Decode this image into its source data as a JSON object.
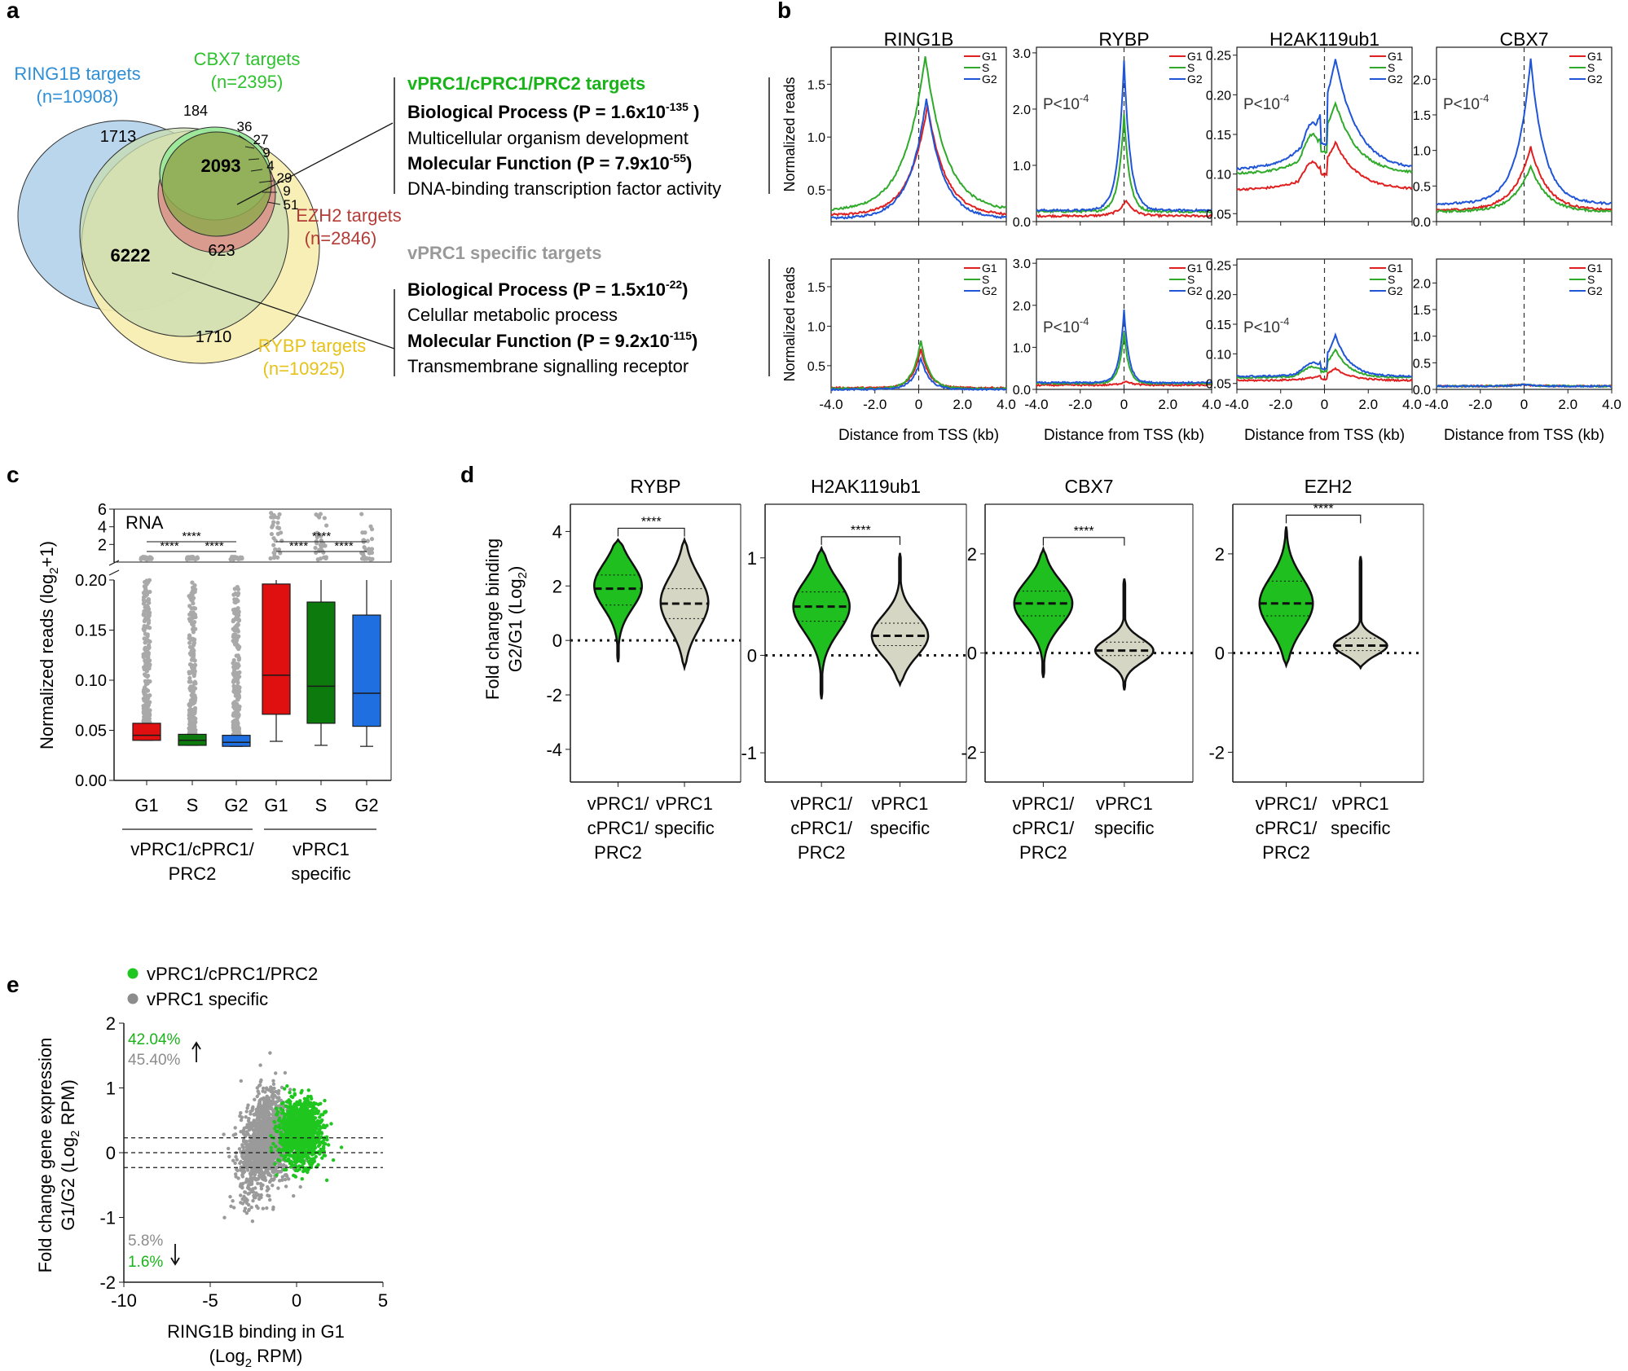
{
  "panel_labels": [
    "a",
    "b",
    "c",
    "d",
    "e"
  ],
  "colors": {
    "ring1b": "#3f8fd2",
    "cbx7": "#3cc43c",
    "ezh2": "#b8413c",
    "rybp": "#e8c620",
    "g1": "#e02020",
    "s": "#2faa2a",
    "g2": "#1f55d6",
    "vprc_green": "#19b319",
    "specific_gray": "#8c8c8c",
    "violin_green": "#1fbf1f",
    "violin_gray": "#d6d6c4"
  },
  "venn": {
    "sets": [
      {
        "name": "RING1B targets",
        "n": "(n=10908)",
        "color": "#2f8fd6"
      },
      {
        "name": "CBX7 targets",
        "n": "(n=2395)",
        "color": "#2fc22f"
      },
      {
        "name": "EZH2 targets",
        "n": "(n=2846)",
        "color": "#b43c36"
      },
      {
        "name": "RYBP targets",
        "n": "(n=10925)",
        "color": "#e6c21a"
      }
    ],
    "counts": {
      "c1713": "1713",
      "c184": "184",
      "c36": "36",
      "c27": "27",
      "c9a": "9",
      "c4": "4",
      "c29": "29",
      "c9b": "9",
      "c51": "51",
      "c2093": "2093",
      "c6222": "6222",
      "c623": "623",
      "c1710": "1710"
    }
  },
  "go": [
    {
      "header": "vPRC1/cPRC1/PRC2 targets",
      "bp_label": "Biological Process (P = 1.6x10",
      "bp_exp": "-135",
      "bp_close": " )",
      "bp_term": "Multicellular organism development",
      "mf_label": "Molecular Function (P = 7.9x10",
      "mf_exp": "-55",
      "mf_close": ")",
      "mf_term": "DNA-binding transcription factor activity"
    },
    {
      "header": "vPRC1 specific targets",
      "bp_label": "Biological Process (P = 1.5x10",
      "bp_exp": "-22",
      "bp_close": ")",
      "bp_term": "Celullar metabolic process",
      "mf_label": "Molecular Function (P = 9.2x10",
      "mf_exp": "-115",
      "mf_close": ")",
      "mf_term": "Transmembrane signalling receptor"
    }
  ],
  "chart_data": [
    {
      "panel": "b",
      "type": "line",
      "titles": [
        "RING1B",
        "RYBP",
        "H2AK119ub1",
        "CBX7"
      ],
      "ylabel": "Normalized reads",
      "xlabel": "Distance from TSS (kb)",
      "xlim": [
        -4.0,
        4.0
      ],
      "xticks": [
        "-4.0",
        "-2.0",
        "0",
        "2.0",
        "4.0"
      ],
      "legend": [
        "G1",
        "S",
        "G2"
      ],
      "pvalue_base": "P<10",
      "pvalue_exp": "-4",
      "rows": [
        {
          "group": "vPRC1/cPRC1/PRC2 targets",
          "panels": [
            {
              "ylim": [
                0.2,
                1.85
              ],
              "yticks": [
                "0.5",
                "1.0",
                "1.5"
              ],
              "ytick_values": [
                0.5,
                1.0,
                1.5
              ],
              "pvalue": false,
              "series": [
                {
                  "name": "G1",
                  "base": 0.26,
                  "peak": 1.3,
                  "peak_x": 0.4,
                  "width": 1.3,
                  "spike": 0
                },
                {
                  "name": "S",
                  "base": 0.3,
                  "peak": 1.77,
                  "peak_x": 0.3,
                  "width": 1.5,
                  "spike": 0
                },
                {
                  "name": "G2",
                  "base": 0.23,
                  "peak": 1.37,
                  "peak_x": 0.35,
                  "width": 1.2,
                  "spike": 0
                }
              ]
            },
            {
              "ylim": [
                0.0,
                3.1
              ],
              "yticks": [
                "0.0",
                "1.0",
                "2.0",
                "3.0"
              ],
              "ytick_values": [
                0.0,
                1.0,
                2.0,
                3.0
              ],
              "pvalue": true,
              "series": [
                {
                  "name": "G1",
                  "base": 0.1,
                  "peak": 0.38,
                  "peak_x": 0.1,
                  "width": 0.6,
                  "spike": 0
                },
                {
                  "name": "S",
                  "base": 0.18,
                  "peak": 1.92,
                  "peak_x": 0.0,
                  "width": 0.4,
                  "spike": 0
                },
                {
                  "name": "G2",
                  "base": 0.2,
                  "peak": 2.88,
                  "peak_x": 0.0,
                  "width": 0.45,
                  "spike": 0
                }
              ]
            },
            {
              "ylim": [
                0.04,
                0.26
              ],
              "yticks": [
                "0.05",
                "0.10",
                "0.15",
                "0.20",
                "0.25"
              ],
              "ytick_values": [
                0.05,
                0.1,
                0.15,
                0.2,
                0.25
              ],
              "pvalue": true,
              "series": [
                {
                  "name": "G1",
                  "base": 0.08,
                  "peak": 0.14,
                  "peak_x": 0.5,
                  "width": 1.6,
                  "spike": 0.115
                },
                {
                  "name": "S",
                  "base": 0.1,
                  "peak": 0.19,
                  "peak_x": 0.5,
                  "width": 1.6,
                  "spike": 0.15
                },
                {
                  "name": "G2",
                  "base": 0.105,
                  "peak": 0.245,
                  "peak_x": 0.5,
                  "width": 1.6,
                  "spike": 0.165
                }
              ]
            },
            {
              "ylim": [
                0.0,
                2.45
              ],
              "yticks": [
                "0.0",
                "0.5",
                "1.0",
                "1.5",
                "2.0"
              ],
              "ytick_values": [
                0.0,
                0.5,
                1.0,
                1.5,
                2.0
              ],
              "pvalue": true,
              "series": [
                {
                  "name": "G1",
                  "base": 0.16,
                  "peak": 1.05,
                  "peak_x": 0.3,
                  "width": 1.2,
                  "spike": 0
                },
                {
                  "name": "S",
                  "base": 0.14,
                  "peak": 0.78,
                  "peak_x": 0.3,
                  "width": 1.2,
                  "spike": 0
                },
                {
                  "name": "G2",
                  "base": 0.25,
                  "peak": 2.28,
                  "peak_x": 0.3,
                  "width": 1.0,
                  "spike": 0
                }
              ]
            }
          ]
        },
        {
          "group": "vPRC1 specific targets",
          "panels": [
            {
              "ylim": [
                0.2,
                1.85
              ],
              "yticks": [
                "0.5",
                "1.0",
                "1.5"
              ],
              "ytick_values": [
                0.5,
                1.0,
                1.5
              ],
              "pvalue": false,
              "series": [
                {
                  "name": "G1",
                  "base": 0.22,
                  "peak": 0.72,
                  "peak_x": 0.1,
                  "width": 0.6,
                  "spike": 0
                },
                {
                  "name": "S",
                  "base": 0.21,
                  "peak": 0.82,
                  "peak_x": 0.1,
                  "width": 0.6,
                  "spike": 0
                },
                {
                  "name": "G2",
                  "base": 0.2,
                  "peak": 0.6,
                  "peak_x": 0.1,
                  "width": 0.6,
                  "spike": 0
                }
              ]
            },
            {
              "ylim": [
                0.0,
                3.1
              ],
              "yticks": [
                "0.0",
                "1.0",
                "2.0",
                "3.0"
              ],
              "ytick_values": [
                0.0,
                1.0,
                2.0,
                3.0
              ],
              "pvalue": true,
              "series": [
                {
                  "name": "G1",
                  "base": 0.1,
                  "peak": 0.2,
                  "peak_x": 0.1,
                  "width": 0.5,
                  "spike": 0
                },
                {
                  "name": "S",
                  "base": 0.14,
                  "peak": 1.37,
                  "peak_x": 0.0,
                  "width": 0.35,
                  "spike": 0
                },
                {
                  "name": "G2",
                  "base": 0.16,
                  "peak": 1.9,
                  "peak_x": 0.0,
                  "width": 0.35,
                  "spike": 0
                }
              ]
            },
            {
              "ylim": [
                0.04,
                0.26
              ],
              "yticks": [
                "0.05",
                "0.10",
                "0.15",
                "0.20",
                "0.25"
              ],
              "ytick_values": [
                0.05,
                0.1,
                0.15,
                0.2,
                0.25
              ],
              "pvalue": true,
              "series": [
                {
                  "name": "G1",
                  "base": 0.055,
                  "peak": 0.075,
                  "peak_x": 0.5,
                  "width": 1.2,
                  "spike": 0.058
                },
                {
                  "name": "S",
                  "base": 0.06,
                  "peak": 0.108,
                  "peak_x": 0.5,
                  "width": 1.0,
                  "spike": 0.078
                },
                {
                  "name": "G2",
                  "base": 0.062,
                  "peak": 0.132,
                  "peak_x": 0.5,
                  "width": 1.0,
                  "spike": 0.085
                }
              ]
            },
            {
              "ylim": [
                0.0,
                2.45
              ],
              "yticks": [
                "0.0",
                "0.5",
                "1.0",
                "1.5",
                "2.0"
              ],
              "ytick_values": [
                0.0,
                0.5,
                1.0,
                1.5,
                2.0
              ],
              "pvalue": false,
              "series": [
                {
                  "name": "G1",
                  "base": 0.06,
                  "peak": 0.09,
                  "peak_x": 0.0,
                  "width": 1.0,
                  "spike": 0
                },
                {
                  "name": "S",
                  "base": 0.06,
                  "peak": 0.09,
                  "peak_x": 0.0,
                  "width": 1.0,
                  "spike": 0
                },
                {
                  "name": "G2",
                  "base": 0.06,
                  "peak": 0.09,
                  "peak_x": 0.0,
                  "width": 1.0,
                  "spike": 0
                }
              ]
            }
          ]
        }
      ]
    },
    {
      "panel": "c",
      "type": "box",
      "corner_label": "RNA",
      "ylabel": "Normalized reads (log",
      "ylabel_sub": "2",
      "ylabel_end": "+1)",
      "yticks_low": [
        "0.00",
        "0.05",
        "0.10",
        "0.15",
        "0.20"
      ],
      "ytick_low_values": [
        0.0,
        0.05,
        0.1,
        0.15,
        0.2
      ],
      "yticks_high": [
        "2",
        "4",
        "6"
      ],
      "ytick_high_values": [
        2,
        4,
        6
      ],
      "categories": [
        "G1",
        "S",
        "G2",
        "G1",
        "S",
        "G2"
      ],
      "groups": [
        "vPRC1/cPRC1/",
        "PRC2",
        "vPRC1",
        "specific"
      ],
      "significance": "****",
      "boxes": [
        {
          "name": "G1",
          "color": "#e01010",
          "whisker_low": 0.04,
          "q1": 0.04,
          "median": 0.045,
          "q3": 0.057,
          "whisker_high": 0.057
        },
        {
          "name": "S",
          "color": "#0d7a0d",
          "whisker_low": 0.035,
          "q1": 0.035,
          "median": 0.04,
          "q3": 0.046,
          "whisker_high": 0.046
        },
        {
          "name": "G2",
          "color": "#1f6fe0",
          "whisker_low": 0.034,
          "q1": 0.034,
          "median": 0.038,
          "q3": 0.045,
          "whisker_high": 0.045
        },
        {
          "name": "G1",
          "color": "#e01010",
          "whisker_low": 0.039,
          "q1": 0.066,
          "median": 0.105,
          "q3": 0.196,
          "whisker_high": 0.2
        },
        {
          "name": "S",
          "color": "#0d7a0d",
          "whisker_low": 0.035,
          "q1": 0.057,
          "median": 0.094,
          "q3": 0.178,
          "whisker_high": 0.2
        },
        {
          "name": "G2",
          "color": "#1f6fe0",
          "whisker_low": 0.034,
          "q1": 0.054,
          "median": 0.087,
          "q3": 0.165,
          "whisker_high": 0.2
        }
      ]
    },
    {
      "panel": "d",
      "type": "violin",
      "ylabel_1": "Fold change binding",
      "ylabel_2": "G2/G1 (Log",
      "ylabel_sub": "2",
      "ylabel_end": ")",
      "category_lines": [
        [
          "vPRC1/",
          "cPRC1/",
          "PRC2"
        ],
        [
          "vPRC1",
          "specific"
        ]
      ],
      "significance": "****",
      "panels": [
        {
          "title": "RYBP",
          "ylim": [
            -5.2,
            5.0
          ],
          "yticks": [
            "4",
            "2",
            "0",
            "-2",
            "-4"
          ],
          "ytick_values": [
            4,
            2,
            0,
            -2,
            -4
          ],
          "violins": [
            {
              "median": 1.9,
              "q1": 1.3,
              "q3": 2.4,
              "min": -0.8,
              "max": 3.7,
              "mode": 2.0,
              "spread": 1.1
            },
            {
              "median": 1.35,
              "q1": 0.8,
              "q3": 1.9,
              "min": -1.0,
              "max": 3.7,
              "mode": 1.4,
              "spread": 1.3
            }
          ]
        },
        {
          "title": "H2AK119ub1",
          "ylim": [
            -1.3,
            1.55
          ],
          "yticks": [
            "1",
            "0",
            "-1"
          ],
          "ytick_values": [
            1,
            0,
            -1
          ],
          "violins": [
            {
              "median": 0.5,
              "q1": 0.35,
              "q3": 0.65,
              "min": -0.45,
              "max": 1.1,
              "mode": 0.5,
              "spread": 0.35
            },
            {
              "median": 0.2,
              "q1": 0.1,
              "q3": 0.33,
              "min": -0.3,
              "max": 1.05,
              "mode": 0.2,
              "spread": 0.28
            }
          ]
        },
        {
          "title": "CBX7",
          "ylim": [
            -2.6,
            3.0
          ],
          "yticks": [
            "2",
            "0",
            "-2"
          ],
          "ytick_values": [
            2,
            0,
            -2
          ],
          "violins": [
            {
              "median": 1.0,
              "q1": 0.75,
              "q3": 1.25,
              "min": -0.5,
              "max": 2.1,
              "mode": 1.0,
              "spread": 0.6
            },
            {
              "median": 0.05,
              "q1": -0.05,
              "q3": 0.22,
              "min": -0.75,
              "max": 1.5,
              "mode": 0.05,
              "spread": 0.32
            }
          ]
        },
        {
          "title": "EZH2",
          "ylim": [
            -2.6,
            3.0
          ],
          "yticks": [
            "2",
            "0",
            "-2"
          ],
          "ytick_values": [
            2,
            0,
            -2
          ],
          "violins": [
            {
              "median": 1.0,
              "q1": 0.75,
              "q3": 1.45,
              "min": -0.25,
              "max": 2.55,
              "mode": 1.0,
              "spread": 0.7
            },
            {
              "median": 0.15,
              "q1": 0.05,
              "q3": 0.3,
              "min": -0.3,
              "max": 1.95,
              "mode": 0.15,
              "spread": 0.25
            }
          ]
        }
      ]
    },
    {
      "panel": "e",
      "type": "scatter",
      "legend": [
        "vPRC1/cPRC1/PRC2",
        "vPRC1 specific"
      ],
      "xlabel_1": "RING1B binding in G1",
      "xlabel_2": "(Log",
      "xlabel_sub": "2",
      "xlabel_end": " RPM)",
      "ylabel_1": "Fold change gene expression",
      "ylabel_2": "G1/G2 (Log",
      "ylabel_sub": "2",
      "ylabel_end": " RPM)",
      "xlim": [
        -10,
        5
      ],
      "ylim": [
        -2,
        2
      ],
      "xticks": [
        "-10",
        "-5",
        "0",
        "5"
      ],
      "xtick_values": [
        -10,
        -5,
        0,
        5
      ],
      "yticks": [
        "2",
        "1",
        "0",
        "-1",
        "-2"
      ],
      "ytick_values": [
        2,
        1,
        0,
        -1,
        -2
      ],
      "threshold_lines": [
        0.23,
        0.0,
        -0.23
      ],
      "pct_up": [
        "42.04%",
        "45.40%"
      ],
      "pct_down": [
        "5.8%",
        "1.6%"
      ],
      "clouds": [
        {
          "name": "vPRC1 specific",
          "center_x": -1.8,
          "center_y": 0.25,
          "sd_x": 1.3,
          "sd_y": 0.45
        },
        {
          "name": "vPRC1/cPRC1/PRC2",
          "center_x": 0.2,
          "center_y": 0.3,
          "sd_x": 1.1,
          "sd_y": 0.3
        }
      ]
    }
  ]
}
